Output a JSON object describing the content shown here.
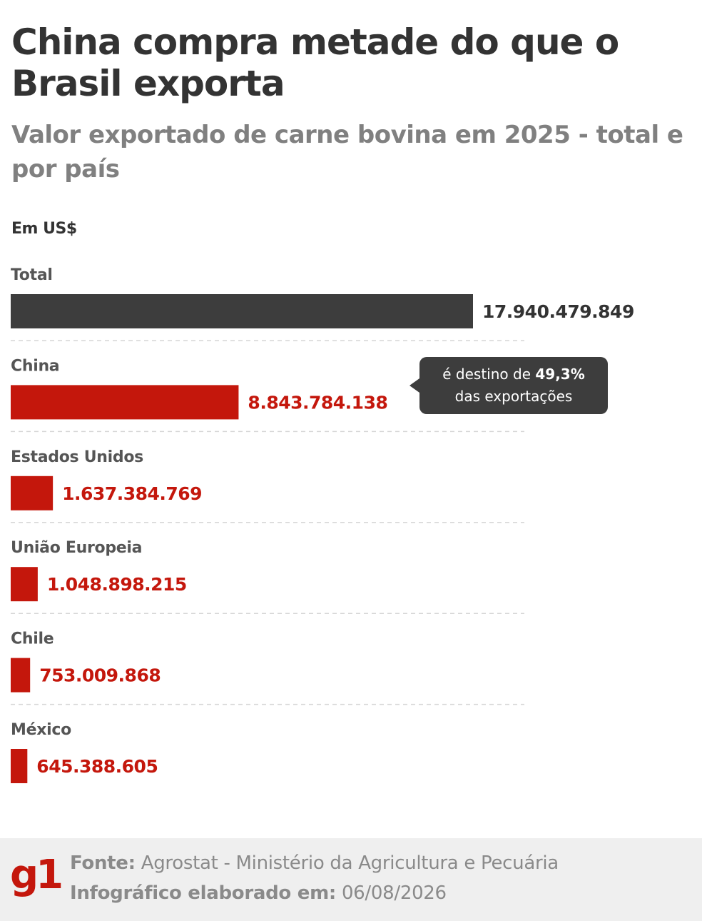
{
  "header": {
    "title": "China compra metade do que o Brasil exporta",
    "subtitle": "Valor exportado de carne bovina em 2025 - total e por país",
    "unit": "Em US$"
  },
  "callout": {
    "prefix": "é destino de ",
    "highlight": "49,3%",
    "suffix": "das exportações"
  },
  "footer": {
    "logo": "g1",
    "source_label": "Fonte:",
    "source_value": "Agrostat - Ministério da Agricultura e Pecuária",
    "date_label": "Infográfico elaborado em:",
    "date_value": "06/08/2026"
  },
  "colors": {
    "total_bar": "#3d3d3d",
    "country_bar": "#c4170c",
    "total_value": "#333333",
    "country_value": "#c4170c"
  },
  "chart_data": {
    "type": "bar",
    "orientation": "horizontal",
    "categories": [
      "Total",
      "China",
      "Estados Unidos",
      "União Europeia",
      "Chile",
      "México"
    ],
    "values": [
      17940479849,
      8843784138,
      1637384769,
      1048898215,
      753009868,
      645388605
    ],
    "value_labels": [
      "17.940.479.849",
      "8.843.784.138",
      "1.637.384.769",
      "1.048.898.215",
      "753.009.868",
      "645.388.605"
    ],
    "unit": "US$",
    "xlim": [
      0,
      17940479849
    ],
    "grid": false
  }
}
